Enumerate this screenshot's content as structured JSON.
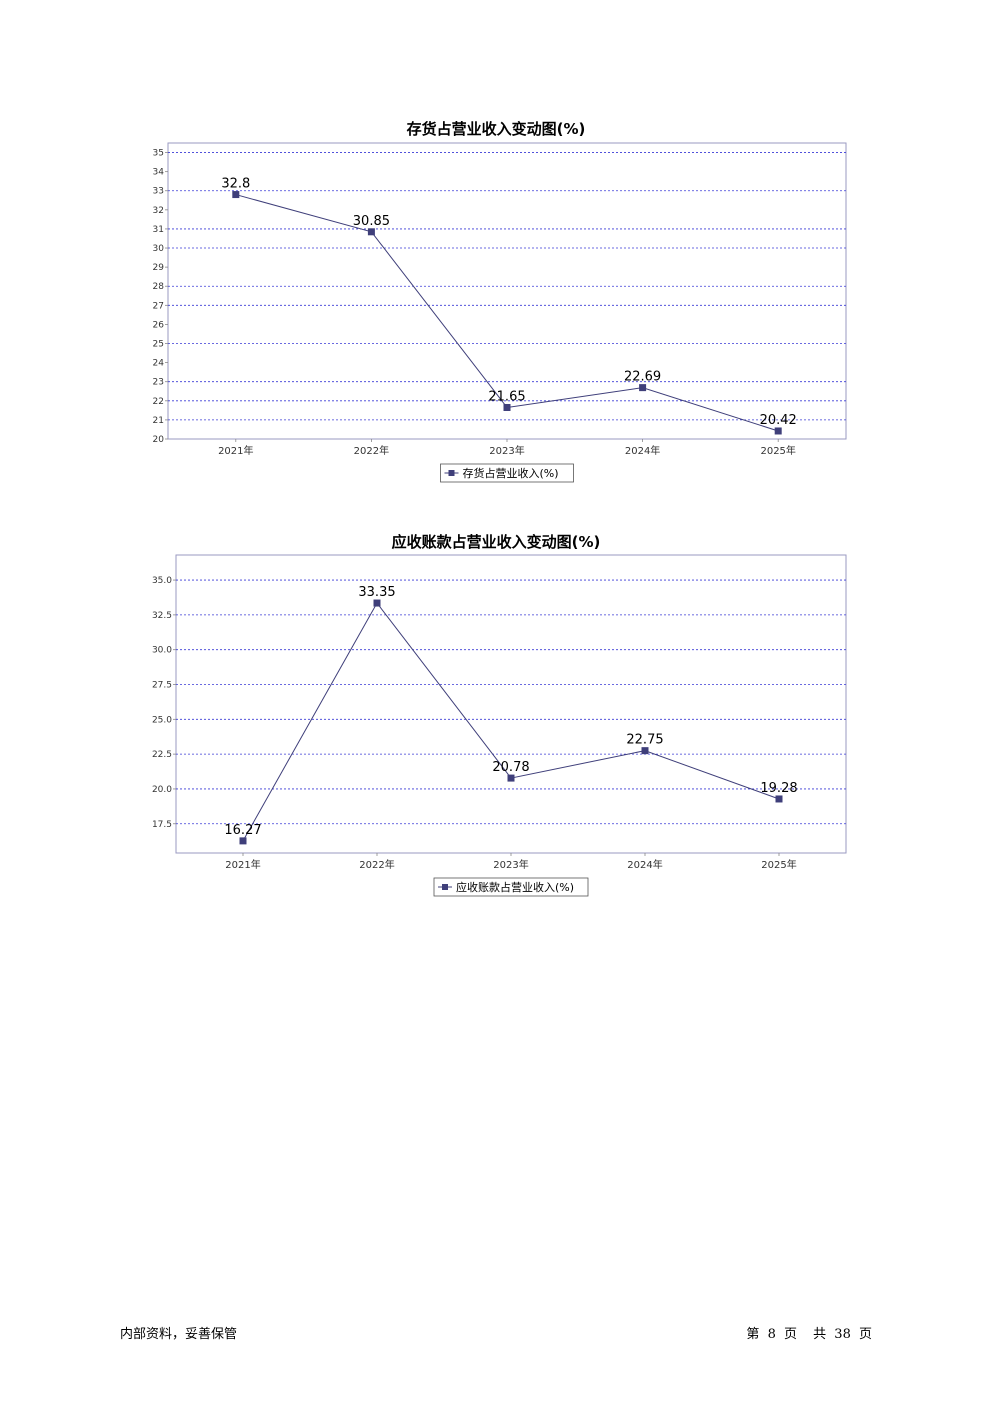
{
  "chart_data": [
    {
      "type": "line",
      "title": "存货占营业收入变动图(%)",
      "categories": [
        "2021年",
        "2022年",
        "2023年",
        "2024年",
        "2025年"
      ],
      "series": [
        {
          "name": "存货占营业收入(%)",
          "values": [
            32.8,
            30.85,
            21.65,
            22.69,
            20.42
          ]
        }
      ],
      "y_ticks": [
        "20",
        "21",
        "22",
        "23",
        "24",
        "25",
        "26",
        "27",
        "28",
        "29",
        "30",
        "31",
        "32",
        "33",
        "34",
        "35"
      ],
      "ylim": [
        20,
        35.5
      ],
      "grid": true,
      "gridlines": [
        21,
        22,
        23,
        25,
        27,
        28,
        30,
        31,
        33,
        35
      ],
      "legend_position": "bottom",
      "line_color": "#3f3f7a"
    },
    {
      "type": "line",
      "title": "应收账款占营业收入变动图(%)",
      "categories": [
        "2021年",
        "2022年",
        "2023年",
        "2024年",
        "2025年"
      ],
      "series": [
        {
          "name": "应收账款占营业收入(%)",
          "values": [
            16.27,
            33.35,
            20.78,
            22.75,
            19.28
          ]
        }
      ],
      "y_ticks": [
        "17.5",
        "20.0",
        "22.5",
        "25.0",
        "27.5",
        "30.0",
        "32.5",
        "35.0"
      ],
      "ylim": [
        15.4,
        36.8
      ],
      "grid": true,
      "gridlines": [
        17.5,
        20.0,
        22.5,
        25.0,
        27.5,
        30.0,
        32.5,
        35.0
      ],
      "legend_position": "bottom",
      "line_color": "#3f3f7a"
    }
  ],
  "footer": {
    "left": "内部资料，妥善保管",
    "page_prefix": "第",
    "page_current": "8",
    "page_mid": "页",
    "total_prefix": "共",
    "page_total": "38",
    "page_suffix": "页"
  }
}
